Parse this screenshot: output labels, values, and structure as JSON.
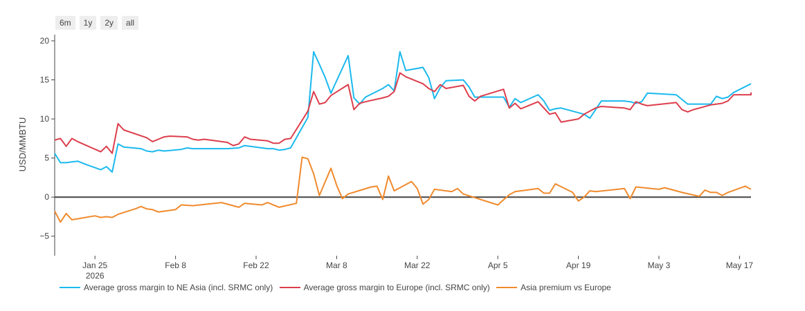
{
  "range_selector": {
    "buttons": [
      "6m",
      "1y",
      "2y",
      "all"
    ]
  },
  "chart_data": {
    "type": "line",
    "title": "",
    "xlabel": "",
    "ylabel": "USD/MMBTU",
    "ylim": [
      -7.5,
      20.8
    ],
    "xlim": [
      "2026-01-18",
      "2026-05-19"
    ],
    "yticks": [
      -5,
      0,
      5,
      10,
      15,
      20
    ],
    "xticks": [
      {
        "date": "2026-01-25",
        "label": "Jan 25",
        "sublabel": "2026"
      },
      {
        "date": "2026-02-08",
        "label": "Feb 8"
      },
      {
        "date": "2026-02-22",
        "label": "Feb 22"
      },
      {
        "date": "2026-03-08",
        "label": "Mar 8"
      },
      {
        "date": "2026-03-22",
        "label": "Mar 22"
      },
      {
        "date": "2026-04-05",
        "label": "Apr 5"
      },
      {
        "date": "2026-04-19",
        "label": "Apr 19"
      },
      {
        "date": "2026-05-03",
        "label": "May 3"
      },
      {
        "date": "2026-05-17",
        "label": "May 17"
      }
    ],
    "zero_line": true,
    "grid": false,
    "legend_position": "bottom",
    "series": [
      {
        "name": "Average gross margin to NE Asia (incl. SRMC only)",
        "color": "#1ab9ee",
        "points": [
          [
            "2026-01-18",
            5.6
          ],
          [
            "2026-01-19",
            4.4
          ],
          [
            "2026-01-20",
            4.4
          ],
          [
            "2026-01-21",
            4.5
          ],
          [
            "2026-01-22",
            4.6
          ],
          [
            "2026-01-23",
            4.3
          ],
          [
            "2026-01-26",
            3.5
          ],
          [
            "2026-01-27",
            3.9
          ],
          [
            "2026-01-28",
            3.2
          ],
          [
            "2026-01-29",
            6.8
          ],
          [
            "2026-01-30",
            6.4
          ],
          [
            "2026-02-02",
            6.2
          ],
          [
            "2026-02-03",
            5.9
          ],
          [
            "2026-02-04",
            5.8
          ],
          [
            "2026-02-05",
            6.0
          ],
          [
            "2026-02-06",
            5.9
          ],
          [
            "2026-02-09",
            6.1
          ],
          [
            "2026-02-10",
            6.3
          ],
          [
            "2026-02-11",
            6.2
          ],
          [
            "2026-02-16",
            6.2
          ],
          [
            "2026-02-17",
            6.2
          ],
          [
            "2026-02-19",
            6.3
          ],
          [
            "2026-02-20",
            6.6
          ],
          [
            "2026-02-23",
            6.3
          ],
          [
            "2026-02-24",
            6.2
          ],
          [
            "2026-02-25",
            6.2
          ],
          [
            "2026-02-26",
            6.0
          ],
          [
            "2026-02-27",
            6.1
          ],
          [
            "2026-02-28",
            6.3
          ],
          [
            "2026-03-03",
            10.2
          ],
          [
            "2026-03-04",
            18.6
          ],
          [
            "2026-03-05",
            17.0
          ],
          [
            "2026-03-06",
            15.3
          ],
          [
            "2026-03-07",
            13.3
          ],
          [
            "2026-03-10",
            18.1
          ],
          [
            "2026-03-11",
            12.7
          ],
          [
            "2026-03-12",
            11.9
          ],
          [
            "2026-03-13",
            12.8
          ],
          [
            "2026-03-16",
            13.9
          ],
          [
            "2026-03-17",
            14.4
          ],
          [
            "2026-03-18",
            13.6
          ],
          [
            "2026-03-19",
            18.6
          ],
          [
            "2026-03-20",
            16.2
          ],
          [
            "2026-03-23",
            16.6
          ],
          [
            "2026-03-24",
            15.3
          ],
          [
            "2026-03-25",
            12.6
          ],
          [
            "2026-03-26",
            14.0
          ],
          [
            "2026-03-27",
            14.9
          ],
          [
            "2026-03-30",
            15.0
          ],
          [
            "2026-03-31",
            14.1
          ],
          [
            "2026-04-01",
            12.8
          ],
          [
            "2026-04-06",
            12.8
          ],
          [
            "2026-04-07",
            11.5
          ],
          [
            "2026-04-08",
            12.6
          ],
          [
            "2026-04-09",
            12.1
          ],
          [
            "2026-04-12",
            13.1
          ],
          [
            "2026-04-13",
            12.3
          ],
          [
            "2026-04-14",
            11.1
          ],
          [
            "2026-04-15",
            11.3
          ],
          [
            "2026-04-16",
            11.4
          ],
          [
            "2026-04-20",
            10.6
          ],
          [
            "2026-04-21",
            10.1
          ],
          [
            "2026-04-22",
            11.2
          ],
          [
            "2026-04-23",
            12.3
          ],
          [
            "2026-04-27",
            12.3
          ],
          [
            "2026-04-28",
            12.2
          ],
          [
            "2026-04-29",
            12.0
          ],
          [
            "2026-04-30",
            12.2
          ],
          [
            "2026-05-01",
            13.3
          ],
          [
            "2026-05-06",
            13.1
          ],
          [
            "2026-05-08",
            11.9
          ],
          [
            "2026-05-12",
            11.9
          ],
          [
            "2026-05-13",
            12.9
          ],
          [
            "2026-05-14",
            12.6
          ],
          [
            "2026-05-15",
            12.8
          ],
          [
            "2026-05-16",
            13.4
          ],
          [
            "2026-05-19",
            14.5
          ]
        ]
      },
      {
        "name": "Average gross margin to Europe (incl. SRMC only)",
        "color": "#dc3e4c",
        "points": [
          [
            "2026-01-18",
            7.3
          ],
          [
            "2026-01-19",
            7.5
          ],
          [
            "2026-01-20",
            6.5
          ],
          [
            "2026-01-21",
            7.5
          ],
          [
            "2026-01-22",
            7.1
          ],
          [
            "2026-01-26",
            5.8
          ],
          [
            "2026-01-27",
            6.5
          ],
          [
            "2026-01-28",
            5.6
          ],
          [
            "2026-01-29",
            9.4
          ],
          [
            "2026-01-30",
            8.6
          ],
          [
            "2026-02-03",
            7.6
          ],
          [
            "2026-02-04",
            7.1
          ],
          [
            "2026-02-05",
            7.4
          ],
          [
            "2026-02-06",
            7.7
          ],
          [
            "2026-02-07",
            7.8
          ],
          [
            "2026-02-10",
            7.7
          ],
          [
            "2026-02-11",
            7.4
          ],
          [
            "2026-02-12",
            7.3
          ],
          [
            "2026-02-13",
            7.4
          ],
          [
            "2026-02-17",
            7.0
          ],
          [
            "2026-02-18",
            6.6
          ],
          [
            "2026-02-19",
            6.8
          ],
          [
            "2026-02-20",
            7.7
          ],
          [
            "2026-02-21",
            7.4
          ],
          [
            "2026-02-24",
            7.2
          ],
          [
            "2026-02-25",
            6.9
          ],
          [
            "2026-02-26",
            6.9
          ],
          [
            "2026-02-27",
            7.4
          ],
          [
            "2026-02-28",
            7.5
          ],
          [
            "2026-03-03",
            11.0
          ],
          [
            "2026-03-04",
            13.5
          ],
          [
            "2026-03-05",
            11.9
          ],
          [
            "2026-03-06",
            12.1
          ],
          [
            "2026-03-07",
            13.0
          ],
          [
            "2026-03-10",
            14.4
          ],
          [
            "2026-03-11",
            11.2
          ],
          [
            "2026-03-12",
            12.0
          ],
          [
            "2026-03-13",
            12.2
          ],
          [
            "2026-03-16",
            12.7
          ],
          [
            "2026-03-17",
            12.9
          ],
          [
            "2026-03-18",
            13.5
          ],
          [
            "2026-03-19",
            15.9
          ],
          [
            "2026-03-20",
            15.4
          ],
          [
            "2026-03-23",
            14.5
          ],
          [
            "2026-03-24",
            13.9
          ],
          [
            "2026-03-25",
            13.5
          ],
          [
            "2026-03-26",
            14.4
          ],
          [
            "2026-03-27",
            13.9
          ],
          [
            "2026-03-30",
            14.3
          ],
          [
            "2026-03-31",
            12.9
          ],
          [
            "2026-04-01",
            12.3
          ],
          [
            "2026-04-02",
            12.9
          ],
          [
            "2026-04-06",
            13.8
          ],
          [
            "2026-04-07",
            11.4
          ],
          [
            "2026-04-08",
            12.0
          ],
          [
            "2026-04-09",
            11.3
          ],
          [
            "2026-04-12",
            12.2
          ],
          [
            "2026-04-13",
            11.4
          ],
          [
            "2026-04-14",
            10.6
          ],
          [
            "2026-04-15",
            10.8
          ],
          [
            "2026-04-16",
            9.6
          ],
          [
            "2026-04-19",
            10.0
          ],
          [
            "2026-04-20",
            10.6
          ],
          [
            "2026-04-21",
            11.0
          ],
          [
            "2026-04-22",
            11.4
          ],
          [
            "2026-04-23",
            11.6
          ],
          [
            "2026-04-27",
            11.4
          ],
          [
            "2026-04-28",
            11.2
          ],
          [
            "2026-04-29",
            12.2
          ],
          [
            "2026-04-30",
            11.9
          ],
          [
            "2026-05-01",
            11.7
          ],
          [
            "2026-05-06",
            12.1
          ],
          [
            "2026-05-07",
            11.2
          ],
          [
            "2026-05-08",
            10.9
          ],
          [
            "2026-05-09",
            11.2
          ],
          [
            "2026-05-12",
            11.8
          ],
          [
            "2026-05-13",
            11.9
          ],
          [
            "2026-05-14",
            12.0
          ],
          [
            "2026-05-15",
            12.3
          ],
          [
            "2026-05-16",
            13.1
          ],
          [
            "2026-05-19",
            13.1
          ],
          [
            "2026-05-20",
            13.4
          ]
        ]
      },
      {
        "name": "Asia premium vs Europe",
        "color": "#f08a2c",
        "points": [
          [
            "2026-01-18",
            -1.8
          ],
          [
            "2026-01-19",
            -3.2
          ],
          [
            "2026-01-20",
            -2.1
          ],
          [
            "2026-01-21",
            -2.9
          ],
          [
            "2026-01-25",
            -2.4
          ],
          [
            "2026-01-26",
            -2.6
          ],
          [
            "2026-01-27",
            -2.5
          ],
          [
            "2026-01-28",
            -2.6
          ],
          [
            "2026-01-29",
            -2.2
          ],
          [
            "2026-02-01",
            -1.5
          ],
          [
            "2026-02-02",
            -1.2
          ],
          [
            "2026-02-03",
            -1.5
          ],
          [
            "2026-02-04",
            -1.6
          ],
          [
            "2026-02-05",
            -1.9
          ],
          [
            "2026-02-08",
            -1.6
          ],
          [
            "2026-02-09",
            -1.0
          ],
          [
            "2026-02-11",
            -1.1
          ],
          [
            "2026-02-16",
            -0.7
          ],
          [
            "2026-02-19",
            -1.3
          ],
          [
            "2026-02-20",
            -0.8
          ],
          [
            "2026-02-23",
            -1.0
          ],
          [
            "2026-02-24",
            -0.7
          ],
          [
            "2026-02-26",
            -1.3
          ],
          [
            "2026-03-01",
            -0.8
          ],
          [
            "2026-03-02",
            5.1
          ],
          [
            "2026-03-03",
            4.9
          ],
          [
            "2026-03-04",
            3.0
          ],
          [
            "2026-03-05",
            0.2
          ],
          [
            "2026-03-07",
            3.7
          ],
          [
            "2026-03-08",
            1.5
          ],
          [
            "2026-03-09",
            -0.2
          ],
          [
            "2026-03-10",
            0.4
          ],
          [
            "2026-03-14",
            1.3
          ],
          [
            "2026-03-15",
            1.4
          ],
          [
            "2026-03-16",
            -0.3
          ],
          [
            "2026-03-17",
            2.7
          ],
          [
            "2026-03-18",
            0.8
          ],
          [
            "2026-03-21",
            2.0
          ],
          [
            "2026-03-22",
            1.1
          ],
          [
            "2026-03-23",
            -0.9
          ],
          [
            "2026-03-24",
            -0.3
          ],
          [
            "2026-03-25",
            1.0
          ],
          [
            "2026-03-28",
            0.7
          ],
          [
            "2026-03-29",
            1.1
          ],
          [
            "2026-03-30",
            0.4
          ],
          [
            "2026-04-05",
            -1.0
          ],
          [
            "2026-04-07",
            0.3
          ],
          [
            "2026-04-08",
            0.7
          ],
          [
            "2026-04-09",
            0.8
          ],
          [
            "2026-04-12",
            1.1
          ],
          [
            "2026-04-13",
            0.5
          ],
          [
            "2026-04-14",
            0.5
          ],
          [
            "2026-04-15",
            1.7
          ],
          [
            "2026-04-18",
            0.6
          ],
          [
            "2026-04-19",
            -0.5
          ],
          [
            "2026-04-20",
            0.0
          ],
          [
            "2026-04-21",
            0.8
          ],
          [
            "2026-04-22",
            0.7
          ],
          [
            "2026-04-27",
            1.1
          ],
          [
            "2026-04-28",
            -0.2
          ],
          [
            "2026-04-29",
            1.3
          ],
          [
            "2026-05-03",
            1.0
          ],
          [
            "2026-05-04",
            1.2
          ],
          [
            "2026-05-05",
            1.0
          ],
          [
            "2026-05-07",
            0.6
          ],
          [
            "2026-05-10",
            0.1
          ],
          [
            "2026-05-11",
            0.9
          ],
          [
            "2026-05-12",
            0.6
          ],
          [
            "2026-05-13",
            0.6
          ],
          [
            "2026-05-14",
            0.2
          ],
          [
            "2026-05-15",
            0.6
          ],
          [
            "2026-05-18",
            1.4
          ],
          [
            "2026-05-19",
            1.0
          ]
        ]
      }
    ]
  }
}
